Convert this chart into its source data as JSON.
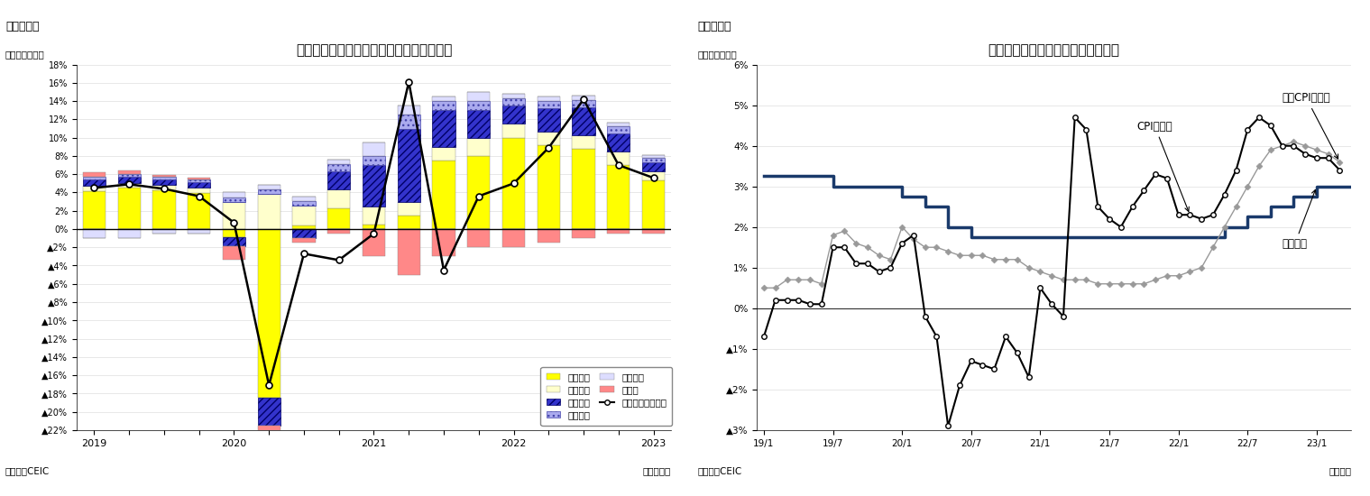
{
  "chart1": {
    "title": "マレーシアの実質ＧＤＰ成長率（需要側）",
    "fig_label": "（図表５）",
    "ylabel_label": "（前年同期比）",
    "xlabel_label": "（四半期）",
    "source": "（資料）CEIC",
    "quarter_labels": [
      "2019",
      "",
      "",
      "",
      "2020",
      "",
      "",
      "",
      "2021",
      "",
      "",
      "",
      "2022",
      "",
      "",
      "",
      "2023"
    ],
    "private_consumption": [
      4.1,
      4.5,
      4.2,
      3.9,
      -0.9,
      -18.5,
      0.4,
      2.3,
      0.5,
      1.5,
      7.5,
      8.0,
      10.0,
      9.2,
      8.8,
      7.0,
      5.3
    ],
    "govt_consumption": [
      0.6,
      0.5,
      0.6,
      0.6,
      3.0,
      3.8,
      2.2,
      2.0,
      2.0,
      1.5,
      1.5,
      2.0,
      1.5,
      1.5,
      1.5,
      1.5,
      1.0
    ],
    "private_investment": [
      0.7,
      0.7,
      0.6,
      0.6,
      -1.0,
      -3.0,
      -1.0,
      2.0,
      4.5,
      8.0,
      4.0,
      3.0,
      2.0,
      2.5,
      3.0,
      2.0,
      1.0
    ],
    "public_investment": [
      0.3,
      0.3,
      0.3,
      0.3,
      0.5,
      0.5,
      0.5,
      0.8,
      1.0,
      1.5,
      1.0,
      1.0,
      0.8,
      0.8,
      0.8,
      0.8,
      0.5
    ],
    "inventory": [
      -1.0,
      -1.0,
      -0.5,
      -0.5,
      0.5,
      0.5,
      0.5,
      0.5,
      1.5,
      1.0,
      0.5,
      1.0,
      0.5,
      0.5,
      0.5,
      0.3,
      0.3
    ],
    "net_exports": [
      0.5,
      0.4,
      0.2,
      0.2,
      -1.5,
      -1.5,
      -0.5,
      -0.5,
      -3.0,
      -5.0,
      -3.0,
      -2.0,
      -2.0,
      -1.5,
      -1.0,
      -0.5,
      -0.5
    ],
    "gdp_growth": [
      4.5,
      4.9,
      4.4,
      3.6,
      0.7,
      -17.1,
      -2.7,
      -3.4,
      -0.5,
      16.1,
      -4.5,
      3.6,
      5.0,
      8.9,
      14.2,
      7.0,
      5.6
    ],
    "ylim": [
      -22,
      18
    ],
    "yticks": [
      18,
      16,
      14,
      12,
      10,
      8,
      6,
      4,
      2,
      0,
      -2,
      -4,
      -6,
      -8,
      -10,
      -12,
      -14,
      -16,
      -18,
      -20,
      -22
    ],
    "colors": {
      "private_consumption": "#FFFF00",
      "govt_consumption": "#FFFFCC",
      "private_investment": "#3333CC",
      "public_investment": "#AAAAEE",
      "inventory": "#DDDDFF",
      "net_exports": "#FF8888"
    }
  },
  "chart2": {
    "title": "マレーシアのインフレ率・政策金利",
    "fig_label": "（図表６）",
    "ylabel_label": "（前年同月比）",
    "xlabel_label": "（月次）",
    "source": "（資料）CEIC",
    "label_cpi": "CPI上昇率",
    "label_core_cpi": "コアCPI上昇率",
    "label_policy": "政策金利",
    "ylim": [
      -3,
      6
    ],
    "yticks": [
      6,
      5,
      4,
      3,
      2,
      1,
      0,
      -1,
      -2,
      -3
    ],
    "cpi_dates_num": [
      2019.0,
      2019.083,
      2019.167,
      2019.25,
      2019.333,
      2019.417,
      2019.5,
      2019.583,
      2019.667,
      2019.75,
      2019.833,
      2019.917,
      2020.0,
      2020.083,
      2020.167,
      2020.25,
      2020.333,
      2020.417,
      2020.5,
      2020.583,
      2020.667,
      2020.75,
      2020.833,
      2020.917,
      2021.0,
      2021.083,
      2021.167,
      2021.25,
      2021.333,
      2021.417,
      2021.5,
      2021.583,
      2021.667,
      2021.75,
      2021.833,
      2021.917,
      2022.0,
      2022.083,
      2022.167,
      2022.25,
      2022.333,
      2022.417,
      2022.5,
      2022.583,
      2022.667,
      2022.75,
      2022.833,
      2022.917,
      2023.0,
      2023.083,
      2023.167
    ],
    "cpi_values": [
      -0.7,
      0.2,
      0.2,
      0.2,
      0.1,
      0.1,
      1.5,
      1.5,
      1.1,
      1.1,
      0.9,
      1.0,
      1.6,
      1.8,
      -0.2,
      -0.7,
      -2.9,
      -1.9,
      -1.3,
      -1.4,
      -1.5,
      -0.7,
      -1.1,
      -1.7,
      0.5,
      0.1,
      -0.2,
      4.7,
      4.4,
      2.5,
      2.2,
      2.0,
      2.5,
      2.9,
      3.3,
      3.2,
      2.3,
      2.3,
      2.2,
      2.3,
      2.8,
      3.4,
      4.4,
      4.7,
      4.5,
      4.0,
      4.0,
      3.8,
      3.7,
      3.7,
      3.4
    ],
    "core_cpi_values": [
      0.5,
      0.5,
      0.7,
      0.7,
      0.7,
      0.6,
      1.8,
      1.9,
      1.6,
      1.5,
      1.3,
      1.2,
      2.0,
      1.7,
      1.5,
      1.5,
      1.4,
      1.3,
      1.3,
      1.3,
      1.2,
      1.2,
      1.2,
      1.0,
      0.9,
      0.8,
      0.7,
      0.7,
      0.7,
      0.6,
      0.6,
      0.6,
      0.6,
      0.6,
      0.7,
      0.8,
      0.8,
      0.9,
      1.0,
      1.5,
      2.0,
      2.5,
      3.0,
      3.5,
      3.9,
      4.0,
      4.1,
      4.0,
      3.9,
      3.8,
      3.6
    ],
    "policy_rate_x": [
      2019.0,
      2019.5,
      2019.5,
      2020.0,
      2020.0,
      2020.167,
      2020.167,
      2020.333,
      2020.333,
      2020.5,
      2020.5,
      2021.0,
      2021.0,
      2022.333,
      2022.333,
      2022.5,
      2022.5,
      2022.667,
      2022.667,
      2022.833,
      2022.833,
      2023.0,
      2023.0,
      2023.583
    ],
    "policy_rate_y": [
      3.25,
      3.25,
      3.0,
      3.0,
      2.75,
      2.75,
      2.5,
      2.5,
      2.0,
      2.0,
      1.75,
      1.75,
      1.75,
      1.75,
      2.0,
      2.0,
      2.25,
      2.25,
      2.5,
      2.5,
      2.75,
      2.75,
      3.0,
      3.0
    ],
    "xtick_labels": [
      "19/1",
      "19/7",
      "20/1",
      "20/7",
      "21/1",
      "21/7",
      "22/1",
      "22/7",
      "23/1"
    ],
    "xtick_nums": [
      2019.0,
      2019.5,
      2020.0,
      2020.5,
      2021.0,
      2021.5,
      2022.0,
      2022.5,
      2023.0
    ]
  }
}
